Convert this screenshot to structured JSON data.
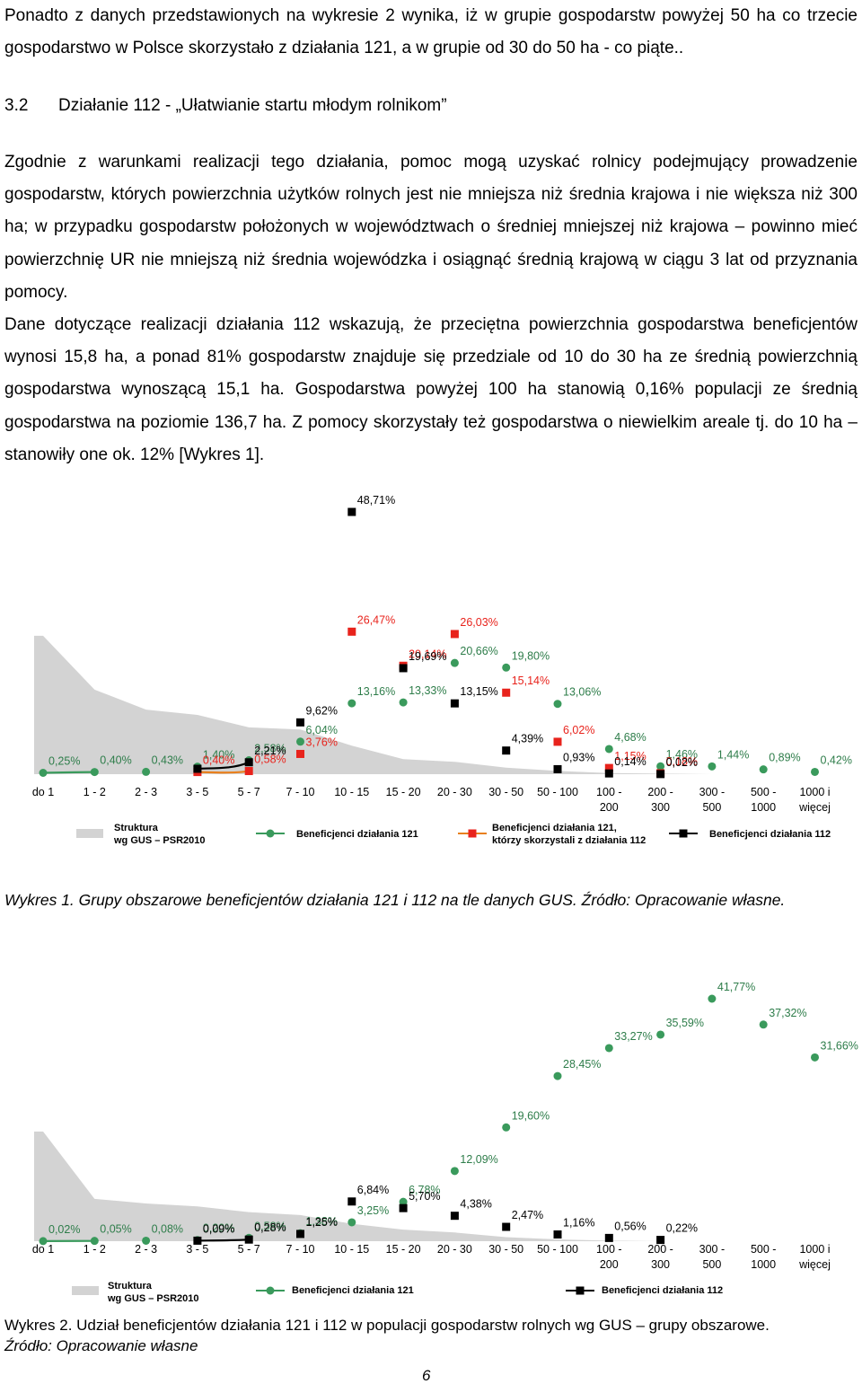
{
  "paragraphs": [
    "Ponadto z danych przedstawionych na wykresie 2 wynika, iż w grupie gospodarstw powyżej 50 ha co trzecie gospodarstwo w Polsce skorzystało z działania 121, a w grupie  od 30 do 50 ha - co piąte.."
  ],
  "heading": {
    "number": "3.2",
    "text": "Działanie 112 - „Ułatwianie startu młodym rolnikom”"
  },
  "paragraphs2": [
    "Zgodnie z warunkami realizacji tego działania, pomoc mogą uzyskać rolnicy podejmujący prowadzenie gospodarstw, których powierzchnia użytków rolnych jest nie mniejsza niż średnia krajowa i nie większa niż 300 ha; w przypadku gospodarstw położonych w województwach o średniej mniejszej niż krajowa – powinno mieć powierzchnię UR nie mniejszą niż średnia wojewódzka i osiągnąć średnią krajową w ciągu 3 lat  od przyznania pomocy.",
    "Dane dotyczące realizacji działania 112 wskazują, że przeciętna powierzchnia gospodarstwa beneficjentów wynosi 15,8 ha, a ponad 81% gospodarstw znajduje się przedziale od 10 do 30 ha ze średnią powierzchnią gospodarstwa wynoszącą 15,1 ha. Gospodarstwa powyżej 100 ha stanowią 0,16% populacji ze średnią gospodarstwa na poziomie 136,7 ha. Z pomocy skorzystały też gospodarstwa o niewielkim areale tj. do 10 ha – stanowiły one ok. 12% [Wykres 1]."
  ],
  "chart_data": [
    {
      "type": "line",
      "categories": [
        "do 1",
        "1 - 2",
        "2 - 3",
        "3 - 5",
        "5 - 7",
        "7 - 10",
        "10 - 15",
        "15 - 20",
        "20 - 30",
        "30 - 50",
        "50 - 100",
        "100 - 200",
        "200 - 300",
        "300 - 500",
        "500 - 1000",
        "1000 i więcej"
      ],
      "series": [
        {
          "name": "Struktura\nwg GUS – PSR2010",
          "kind": "area",
          "color": "#d3d3d3",
          "values": [
            25.7,
            15.7,
            12,
            11,
            8.7,
            8.3,
            5.3,
            2.8,
            2.3,
            1.2,
            0.6,
            0.2,
            0.1,
            0,
            0,
            0
          ]
        },
        {
          "name": "Beneficjenci działania 121",
          "kind": "line",
          "marker": "circle",
          "color": "#3a9a5c",
          "values": [
            0.25,
            0.4,
            0.43,
            1.4,
            2.58,
            6.04,
            13.16,
            13.33,
            20.66,
            19.8,
            13.06,
            4.68,
            1.46,
            1.44,
            0.89,
            0.42
          ],
          "value_labels": [
            "0,25%",
            "0,40%",
            "0,43%",
            "1,40%",
            "2,58%",
            "6,04%",
            "13,16%",
            "13,33%",
            "20,66%",
            "19,80%",
            "13,06%",
            "4,68%",
            "1,46%",
            "1,44%",
            "0,89%",
            "0,42%"
          ]
        },
        {
          "name": "Beneficjenci działania 121,\nktórzy skorzystali  z działania 112",
          "kind": "line",
          "marker": "square",
          "color": "#e8231c",
          "line_color": "#e8801e",
          "values": [
            null,
            null,
            null,
            0.4,
            0.58,
            3.76,
            26.47,
            20.14,
            26.03,
            15.14,
            6.02,
            1.15,
            0.18,
            null,
            null,
            null
          ],
          "value_labels": [
            null,
            null,
            null,
            "0,40%",
            "0,58%",
            "3,76%",
            "26,47%",
            "20,14%",
            "26,03%",
            "15,14%",
            "6,02%",
            "1,15%",
            "0,18%",
            null,
            null,
            null
          ]
        },
        {
          "name": "Beneficjenci działania 112",
          "kind": "line",
          "marker": "square",
          "color": "#000000",
          "values": [
            null,
            null,
            null,
            1.0,
            2.21,
            9.62,
            48.71,
            19.69,
            13.15,
            4.39,
            0.93,
            0.14,
            0.02,
            null,
            null,
            null
          ],
          "value_labels": [
            null,
            null,
            null,
            null,
            "2,21%",
            "9,62%",
            "48,71%",
            "19,69%",
            "13,15%",
            "4,39%",
            "0,93%",
            "0,14%",
            "0,02%",
            null,
            null,
            null
          ]
        }
      ],
      "caption": "Wykres 1. Grupy obszarowe beneficjentów działania 121 i 112 na tle danych GUS. Źródło: Opracowanie własne."
    },
    {
      "type": "line",
      "categories": [
        "do 1",
        "1 - 2",
        "2 - 3",
        "3 - 5",
        "5 - 7",
        "7 - 10",
        "10 - 15",
        "15 - 20",
        "20 - 30",
        "30 - 50",
        "50 - 100",
        "100 - 200",
        "200 - 300",
        "300 - 500",
        "500 - 1000",
        "1000 i więcej"
      ],
      "series": [
        {
          "name": "Struktura\nwg GUS – PSR2010",
          "kind": "area",
          "color": "#d3d3d3",
          "values": [
            18.9,
            7.3,
            6.5,
            6,
            5,
            4.5,
            3,
            2,
            1.5,
            0.7,
            0.3,
            0.1,
            0,
            0,
            0,
            0
          ]
        },
        {
          "name": "Beneficjenci działania 121",
          "kind": "line",
          "marker": "circle",
          "color": "#3a9a5c",
          "values": [
            0.02,
            0.05,
            0.08,
            0.2,
            0.58,
            1.38,
            3.25,
            6.78,
            12.09,
            19.6,
            28.45,
            33.27,
            35.59,
            41.77,
            37.32,
            31.66
          ],
          "value_labels": [
            "0,02%",
            "0,05%",
            "0,08%",
            "0,20%",
            "0,58%",
            "1,38%",
            "3,25%",
            "6,78%",
            "12,09%",
            "19,60%",
            "28,45%",
            "33,27%",
            "35,59%",
            "41,77%",
            "37,32%",
            "31,66%"
          ]
        },
        {
          "name": "Beneficjenci działania 112",
          "kind": "line",
          "marker": "square",
          "color": "#000000",
          "values": [
            null,
            null,
            null,
            0.09,
            0.28,
            1.25,
            6.84,
            5.7,
            4.38,
            2.47,
            1.16,
            0.56,
            0.22,
            null,
            null,
            null
          ],
          "value_labels": [
            null,
            null,
            null,
            "0,09%",
            "0,28%",
            "1,25%",
            "6,84%",
            "5,70%",
            "4,38%",
            "2,47%",
            "1,16%",
            "0,56%",
            "0,22%",
            null,
            null,
            null
          ]
        }
      ],
      "caption": "Wykres 2. Udział beneficjentów działania 121 i 112 w populacji gospodarstw rolnych wg GUS – grupy obszarowe.",
      "source": "Źródło: Opracowanie własne"
    }
  ],
  "page_number": "6"
}
